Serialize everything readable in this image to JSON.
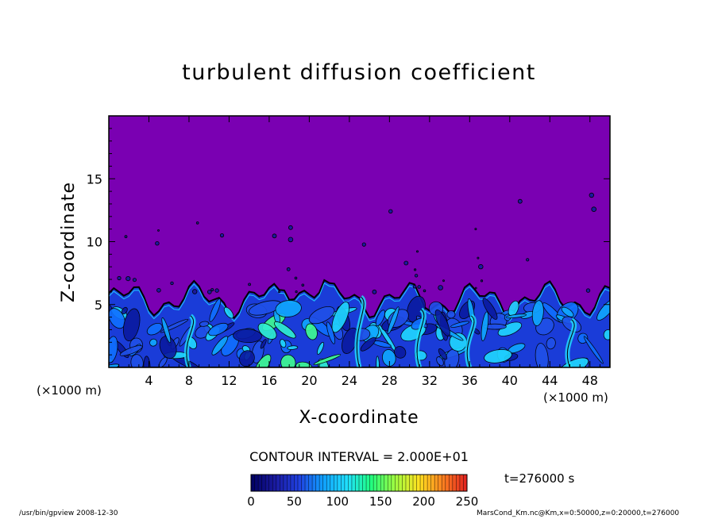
{
  "chart_data": {
    "type": "heatmap",
    "title": "turbulent diffusion coefficient",
    "xlabel": "X-coordinate",
    "ylabel": "Z-coordinate",
    "x_unit": "(×1000 m)",
    "x_ticks": [
      4,
      8,
      12,
      16,
      20,
      24,
      28,
      32,
      36,
      40,
      44,
      48
    ],
    "y_ticks": [
      5,
      10,
      15
    ],
    "xlim": [
      0,
      50
    ],
    "ylim": [
      0,
      20
    ],
    "contour_interval": "CONTOUR INTERVAL = 2.000E+01",
    "time_label": "t=276000 s",
    "colorbar": {
      "ticks": [
        0,
        50,
        100,
        150,
        200,
        250
      ],
      "range": [
        0,
        250
      ],
      "colors": [
        "#000060",
        "#1a1aa0",
        "#2040e0",
        "#10a0ff",
        "#20e0ff",
        "#20ff80",
        "#a0ff40",
        "#ffe020",
        "#ff8020",
        "#e02020"
      ]
    },
    "background_color": "#7a00b2",
    "turbulent_layer_top_km": 6
  },
  "footer": {
    "left": "/usr/bin/gpview   2008-12-30",
    "right": "MarsCond_Km.nc@Km,x=0:50000,z=0:20000,t=276000"
  }
}
